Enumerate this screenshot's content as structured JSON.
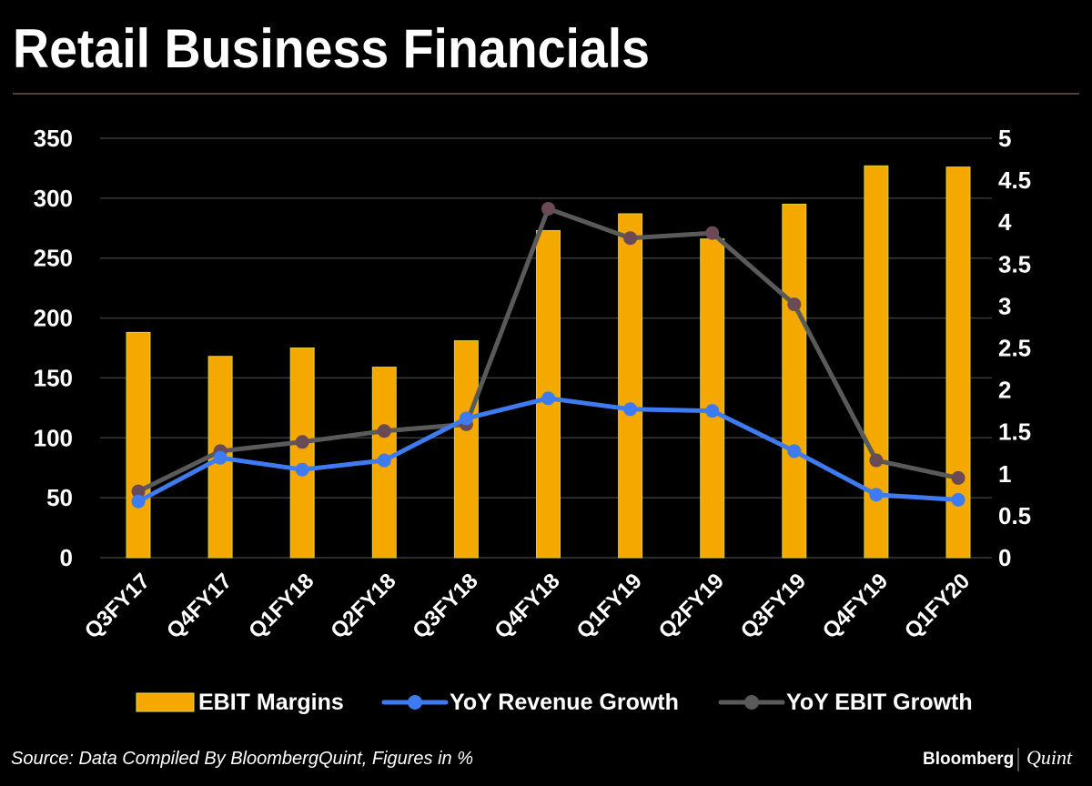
{
  "chart_data": {
    "type": "bar+line",
    "title": "Retail Business Financials",
    "categories": [
      "Q3FY17",
      "Q4FY17",
      "Q1FY18",
      "Q2FY18",
      "Q3FY18",
      "Q4FY18",
      "Q1FY19",
      "Q2FY19",
      "Q3FY19",
      "Q4FY19",
      "Q1FY20"
    ],
    "left_axis": {
      "ylim": [
        0,
        350
      ],
      "ticks": [
        "0",
        "50",
        "100",
        "150",
        "200",
        "250",
        "300",
        "350"
      ]
    },
    "right_axis": {
      "ylim": [
        0,
        5
      ],
      "ticks": [
        "0",
        "0.5",
        "1",
        "1.5",
        "2",
        "2.5",
        "3",
        "3.5",
        "4",
        "4.5",
        "5"
      ]
    },
    "grid": true,
    "legend_position": "bottom",
    "series": [
      {
        "name": "EBIT Margins",
        "type": "bar",
        "axis": "left",
        "color": "#F5A800",
        "values": [
          188,
          168,
          175,
          159,
          181,
          273,
          287,
          266,
          295,
          327,
          326
        ]
      },
      {
        "name": "YoY Revenue Growth",
        "type": "line",
        "axis": "right",
        "color": "#3F7BF0",
        "values": [
          0.67,
          1.19,
          1.05,
          1.16,
          1.66,
          1.9,
          1.77,
          1.75,
          1.27,
          0.75,
          0.69
        ]
      },
      {
        "name": "YoY EBIT Growth",
        "type": "line",
        "axis": "right",
        "color": "#5A5A5A",
        "values": [
          0.79,
          1.27,
          1.38,
          1.51,
          1.59,
          4.16,
          3.81,
          3.87,
          3.02,
          1.16,
          0.95
        ]
      }
    ],
    "source": "Source: Data Compiled By BloombergQuint, Figures in %"
  },
  "brand": {
    "logo_left": "Bloomberg",
    "logo_right": "Quint"
  }
}
